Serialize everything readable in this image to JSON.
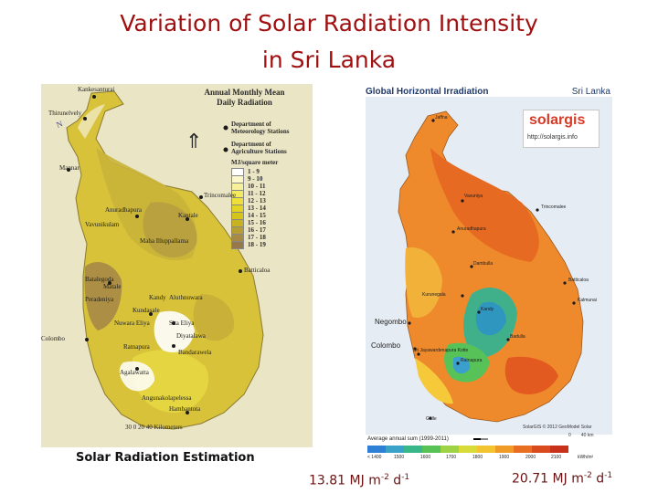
{
  "slide": {
    "title_line1": "Variation of Solar Radiation Intensity",
    "title_line2": "in Sri Lanka"
  },
  "left_map": {
    "heading_line1": "Annual Monthly Mean",
    "heading_line2": "Daily Radiation",
    "legend_items": [
      {
        "label": "Department of"
      },
      {
        "label": "Meteorology Stations"
      },
      {
        "label": "Department of"
      },
      {
        "label": "Agriculture Stations"
      }
    ],
    "unit": "MJ/square meter",
    "scale_classes": [
      {
        "label": "1 - 9",
        "color": "#ffffff"
      },
      {
        "label": "9 - 10",
        "color": "#fbf7c8"
      },
      {
        "label": "10 - 11",
        "color": "#f7f09a"
      },
      {
        "label": "11 - 12",
        "color": "#f3ea60"
      },
      {
        "label": "12 - 13",
        "color": "#eee038"
      },
      {
        "label": "13 - 14",
        "color": "#e4d422"
      },
      {
        "label": "14 - 15",
        "color": "#d6c41a"
      },
      {
        "label": "15 - 16",
        "color": "#c8b222"
      },
      {
        "label": "16 - 17",
        "color": "#b79e34"
      },
      {
        "label": "17 - 18",
        "color": "#a78a44"
      },
      {
        "label": "18 - 19",
        "color": "#96794a"
      }
    ],
    "scale_bar": "30  0  20  40 Kilometers",
    "footer": "Solar Radiation Estimation",
    "places": [
      "Kankesanturai",
      "Thirunelvely",
      "Mannar",
      "Trincomalee",
      "Anuradhapura",
      "Vavunikulam",
      "Kantale",
      "Maha Illuppallama",
      "Batticaloa",
      "Batalegoda",
      "Matale",
      "Peradeniya",
      "Kandy",
      "Aluthnuwara",
      "Kundasale",
      "Nuwara Eliya",
      "Sita Eliya",
      "Colombo",
      "Diyatalawa",
      "Ratnapura",
      "Bandarawela",
      "Agalawatta",
      "Angunakolapelessa",
      "Hambantota"
    ]
  },
  "right_map": {
    "title": "Global Horizontal Irradiation",
    "region": "Sri Lanka",
    "brand": "solargis",
    "brand_url": "http://solargis.info",
    "places": [
      "Jaffna",
      "Vavuniya",
      "Trincomalee",
      "Anuradhapura",
      "Dambulla",
      "Batticaloa",
      "Kurunegala",
      "Kalmunai",
      "Kandy",
      "Negombo",
      "Colombo",
      "Sri Jayawardenapura Kotte",
      "Badulla",
      "Ratnapura",
      "Galle"
    ],
    "copyright": "SolarGIS © 2012 GeoModel Solar",
    "scale_km": "0        40 km",
    "legend_title": "Average annual sum (1999-2011)",
    "legend_ticks": [
      "< 1400",
      "1500",
      "1600",
      "1700",
      "1800",
      "1900",
      "2000",
      "2100",
      "kWh/m²"
    ],
    "legend_colors": [
      "#2e7fd6",
      "#3aa1c8",
      "#38b889",
      "#59c257",
      "#9fd346",
      "#d8dc3a",
      "#f2c430",
      "#f09a28",
      "#e86e22",
      "#d94a1e",
      "#c8321a"
    ]
  },
  "captions": {
    "left_value": "13.81 MJ m",
    "left_exp1": "-2",
    "left_mid": " d",
    "left_exp2": "-1",
    "right_value": "20.71 MJ m",
    "right_exp1": "-2",
    "right_mid": " d",
    "right_exp2": "-1"
  }
}
